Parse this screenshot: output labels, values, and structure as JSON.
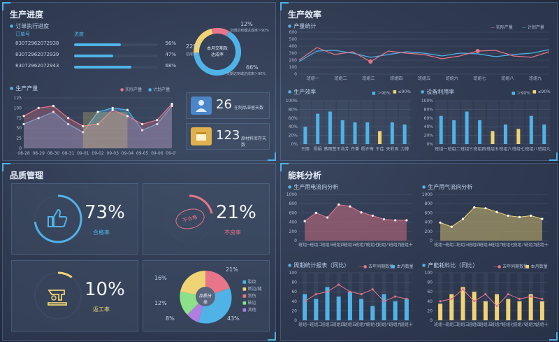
{
  "production_progress": {
    "title": "生产进度",
    "orders_subtitle": "订单执行进度",
    "col_order": "订单号",
    "col_progress": "进度",
    "orders": [
      {
        "id": "830729620729​38",
        "pct": "56%",
        "value": 56
      },
      {
        "id": "83072962072939",
        "pct": "47%",
        "value": 47
      },
      {
        "id": "83072962072943",
        "pct": "68%",
        "value": 68
      }
    ],
    "donut": {
      "center": "本月交期及达成率",
      "top_pct": "12%",
      "top_note": "交期达到或达成率＞90%",
      "left_pct": "22%",
      "left_note": "达成率",
      "right_pct": "66%",
      "right_note": "交期达到或达成率＞90%"
    },
    "output_subtitle": "生产产量",
    "legend_actual": "实际产量",
    "legend_plan": "计划产量",
    "output_dates": [
      "08-28",
      "08-29",
      "08-30",
      "08-31",
      "09-01",
      "09-02",
      "09-03",
      "09-04",
      "09-05",
      "09-06",
      "09-07"
    ],
    "output_yticks": [
      "0",
      "25",
      "50",
      "75",
      "100",
      "125"
    ],
    "kpi1_value": "26",
    "kpi1_label": "在制品滞留天数",
    "kpi2_value": "123",
    "kpi2_label": "原材料库存天数"
  },
  "production_efficiency": {
    "title": "生产效率",
    "stats_subtitle": "产量统计",
    "legend_actual": "实际产量",
    "legend_plan": "计划产量",
    "groups": [
      "班组一",
      "班组二",
      "班组三",
      "班组四",
      "班组五",
      "班组六",
      "班组七",
      "班组八",
      "班组九"
    ],
    "yticks_top": [
      "0",
      "100",
      "200",
      "300",
      "400",
      "500",
      "600"
    ],
    "eff_subtitle": "生产效率",
    "eff_legend_a": "＞90%",
    "eff_legend_b": "≤90%",
    "eff_names": [
      "王丽",
      "杨娟",
      "蔡雨萱",
      "王浩芳",
      "齐秉",
      "杨许梅",
      "王佳",
      "天彩则",
      "力博"
    ],
    "eff_values": [
      40,
      70,
      75,
      55,
      50,
      50,
      30,
      50,
      45
    ],
    "eff_low": [
      false,
      false,
      false,
      false,
      false,
      false,
      true,
      false,
      false
    ],
    "util_subtitle": "设备利用率",
    "util_legend_a": "＞90%",
    "util_legend_b": "≤90%",
    "util_names": [
      "班组一",
      "班组二",
      "班组三",
      "班组四",
      "班组五",
      "班组六",
      "班组七",
      "班组八",
      "班组九"
    ],
    "util_values": [
      65,
      55,
      75,
      55,
      30,
      45,
      35,
      65,
      45
    ],
    "util_low": [
      false,
      false,
      false,
      false,
      true,
      false,
      true,
      false,
      false
    ],
    "pct_ticks": [
      "0%",
      "20%",
      "40%",
      "60%",
      "80%",
      "100%"
    ]
  },
  "quality": {
    "title": "品质管理",
    "pass_value": "73%",
    "pass_label": "合格率",
    "defect_value": "21%",
    "defect_label": "不良率",
    "defect_stamp": "不合格",
    "rework_value": "10%",
    "rework_label": "返工率",
    "pie_center": "品质分类",
    "pie_labels": [
      "21%",
      "43%",
      "8%",
      "12%",
      "16%"
    ],
    "pie_legend": [
      "裂纹",
      "断边/缝",
      "划伤",
      "破边",
      "其他"
    ]
  },
  "energy": {
    "title": "能耗分析",
    "elec_subtitle": "生产用电流向分析",
    "gas_subtitle": "生产用气流向分析",
    "groups": [
      "班组一",
      "班组二",
      "班组三",
      "班组四",
      "班组五",
      "班组六",
      "班组七",
      "班组八",
      "班组九",
      "班组十"
    ],
    "yticks": [
      "0",
      "200",
      "400",
      "600",
      "800",
      "1000"
    ],
    "elec_values": [
      420,
      600,
      500,
      780,
      740,
      610,
      540,
      460,
      440,
      440
    ],
    "gas_values": [
      390,
      300,
      470,
      720,
      700,
      620,
      540,
      510,
      540,
      470
    ],
    "weekly_subtitle": "周期统计报表（同比）",
    "weekly_legend_a": "去年同期数量",
    "weekly_legend_b": "本月数量",
    "mat_subtitle": "产能耗料比（同比）",
    "mat_legend_a": "去年同期数量",
    "mat_legend_b": "本月数量",
    "yticks_small": [
      "0",
      "20",
      "40",
      "60",
      "80",
      "100"
    ],
    "weekly_bars": [
      55,
      45,
      70,
      50,
      60,
      45,
      30,
      55,
      40,
      45
    ],
    "weekly_line": [
      40,
      55,
      60,
      75,
      60,
      55,
      65,
      40,
      50,
      45
    ],
    "mat_bars": [
      35,
      55,
      70,
      60,
      40,
      55,
      45,
      40,
      55,
      40
    ],
    "mat_line": [
      40,
      45,
      65,
      40,
      55,
      30,
      55,
      45,
      50,
      45
    ]
  }
}
